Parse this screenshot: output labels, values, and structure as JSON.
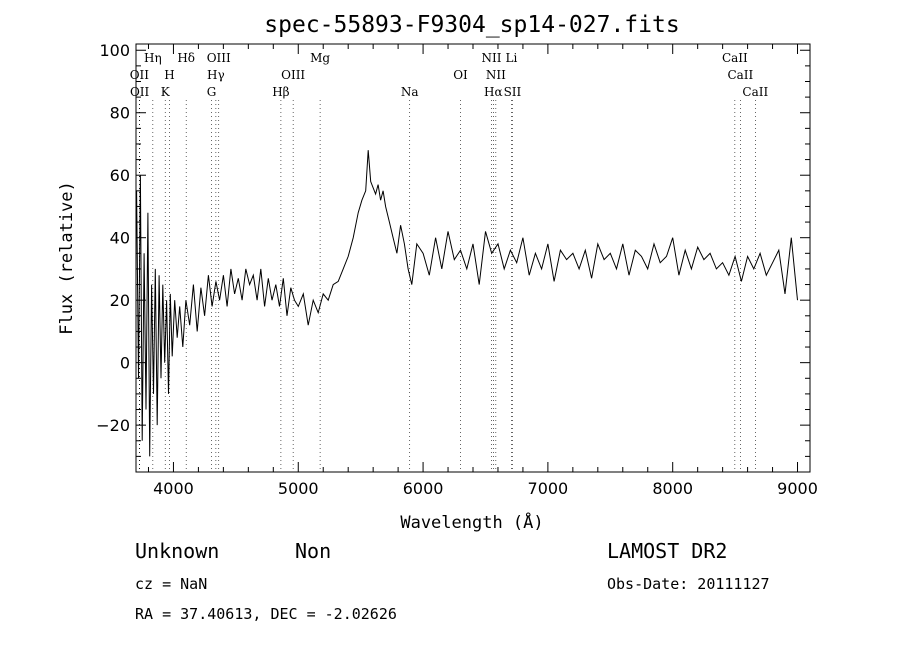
{
  "chart_data": {
    "type": "line",
    "title": "spec-55893-F9304_sp14-027.fits",
    "xlabel": "Wavelength (Å)",
    "ylabel": "Flux (relative)",
    "xlim": [
      3700,
      9100
    ],
    "ylim": [
      -35,
      102
    ],
    "xticks": [
      4000,
      5000,
      6000,
      7000,
      8000,
      9000
    ],
    "yticks": [
      -20,
      0,
      20,
      40,
      60,
      80,
      100
    ],
    "grid": false,
    "series": [
      {
        "x": [
          3705,
          3720,
          3735,
          3750,
          3765,
          3780,
          3795,
          3810,
          3825,
          3840,
          3855,
          3870,
          3885,
          3900,
          3915,
          3930,
          3945,
          3960,
          3975,
          3990,
          4010,
          4030,
          4050,
          4075,
          4100,
          4130,
          4160,
          4190,
          4220,
          4250,
          4280,
          4310,
          4340,
          4370,
          4400,
          4430,
          4460,
          4490,
          4520,
          4550,
          4580,
          4610,
          4640,
          4670,
          4700,
          4730,
          4760,
          4790,
          4820,
          4850,
          4880,
          4910,
          4940,
          4970,
          5000,
          5040,
          5080,
          5120,
          5160,
          5200,
          5240,
          5280,
          5320,
          5360,
          5400,
          5440,
          5480,
          5510,
          5540,
          5560,
          5580,
          5600,
          5620,
          5640,
          5660,
          5680,
          5700,
          5730,
          5760,
          5790,
          5820,
          5850,
          5880,
          5910,
          5950,
          6000,
          6050,
          6100,
          6150,
          6200,
          6250,
          6300,
          6350,
          6400,
          6450,
          6500,
          6550,
          6600,
          6650,
          6700,
          6750,
          6800,
          6850,
          6900,
          6950,
          7000,
          7050,
          7100,
          7150,
          7200,
          7250,
          7300,
          7350,
          7400,
          7450,
          7500,
          7550,
          7600,
          7650,
          7700,
          7750,
          7800,
          7850,
          7900,
          7950,
          8000,
          8050,
          8100,
          8150,
          8200,
          8250,
          8300,
          8350,
          8400,
          8450,
          8500,
          8550,
          8600,
          8650,
          8700,
          8750,
          8800,
          8850,
          8900,
          8950,
          8980,
          9000
        ],
        "y": [
          55,
          -5,
          60,
          -25,
          35,
          -15,
          48,
          -30,
          25,
          -10,
          30,
          -20,
          28,
          -5,
          25,
          0,
          20,
          -10,
          22,
          2,
          20,
          8,
          18,
          5,
          20,
          12,
          25,
          10,
          24,
          15,
          28,
          18,
          26,
          20,
          28,
          18,
          30,
          22,
          27,
          20,
          30,
          25,
          28,
          20,
          30,
          18,
          27,
          20,
          25,
          18,
          27,
          15,
          24,
          20,
          18,
          22,
          12,
          20,
          16,
          22,
          20,
          25,
          26,
          30,
          34,
          40,
          48,
          52,
          55,
          68,
          58,
          56,
          54,
          57,
          52,
          55,
          50,
          45,
          40,
          35,
          44,
          38,
          30,
          25,
          38,
          35,
          28,
          40,
          30,
          42,
          33,
          36,
          30,
          38,
          25,
          42,
          35,
          38,
          30,
          36,
          32,
          40,
          28,
          35,
          30,
          38,
          26,
          36,
          33,
          35,
          30,
          36,
          27,
          38,
          33,
          35,
          30,
          38,
          28,
          36,
          34,
          30,
          38,
          32,
          34,
          40,
          28,
          36,
          30,
          37,
          33,
          35,
          30,
          32,
          28,
          34,
          26,
          34,
          30,
          35,
          28,
          32,
          36,
          22,
          40,
          28,
          20
        ],
        "color": "#000000"
      }
    ],
    "lines": [
      {
        "label": "Hη",
        "x": 3835,
        "row": 0
      },
      {
        "label": "OII",
        "x": 3727,
        "row": 1
      },
      {
        "label": "OII",
        "x": 3729,
        "row": 2
      },
      {
        "label": "H",
        "x": 3968,
        "row": 1
      },
      {
        "label": "K",
        "x": 3934,
        "row": 2
      },
      {
        "label": "Hδ",
        "x": 4102,
        "row": 0
      },
      {
        "label": "OIII",
        "x": 4363,
        "row": 0
      },
      {
        "label": "Hγ",
        "x": 4340,
        "row": 1
      },
      {
        "label": "G",
        "x": 4305,
        "row": 2
      },
      {
        "label": "Hβ",
        "x": 4861,
        "row": 2
      },
      {
        "label": "OIII",
        "x": 4959,
        "row": 1
      },
      {
        "label": "Mg",
        "x": 5175,
        "row": 0
      },
      {
        "label": "Na",
        "x": 5893,
        "row": 2
      },
      {
        "label": "OI",
        "x": 6300,
        "row": 1
      },
      {
        "label": "NII",
        "x": 6548,
        "row": 0
      },
      {
        "label": "NII",
        "x": 6583,
        "row": 1
      },
      {
        "label": "Hα",
        "x": 6563,
        "row": 2
      },
      {
        "label": "Li",
        "x": 6708,
        "row": 0
      },
      {
        "label": "SII",
        "x": 6716,
        "row": 2
      },
      {
        "label": "CaII",
        "x": 8498,
        "row": 0
      },
      {
        "label": "CaII",
        "x": 8542,
        "row": 1
      },
      {
        "label": "CaII",
        "x": 8662,
        "row": 2
      }
    ]
  },
  "info": {
    "class": "Unknown",
    "subclass": "Non",
    "survey": "LAMOST DR2",
    "cz": "cz = NaN",
    "obs_date": "Obs-Date: 20111127",
    "radec": "RA =  37.40613, DEC =  -2.02626"
  }
}
